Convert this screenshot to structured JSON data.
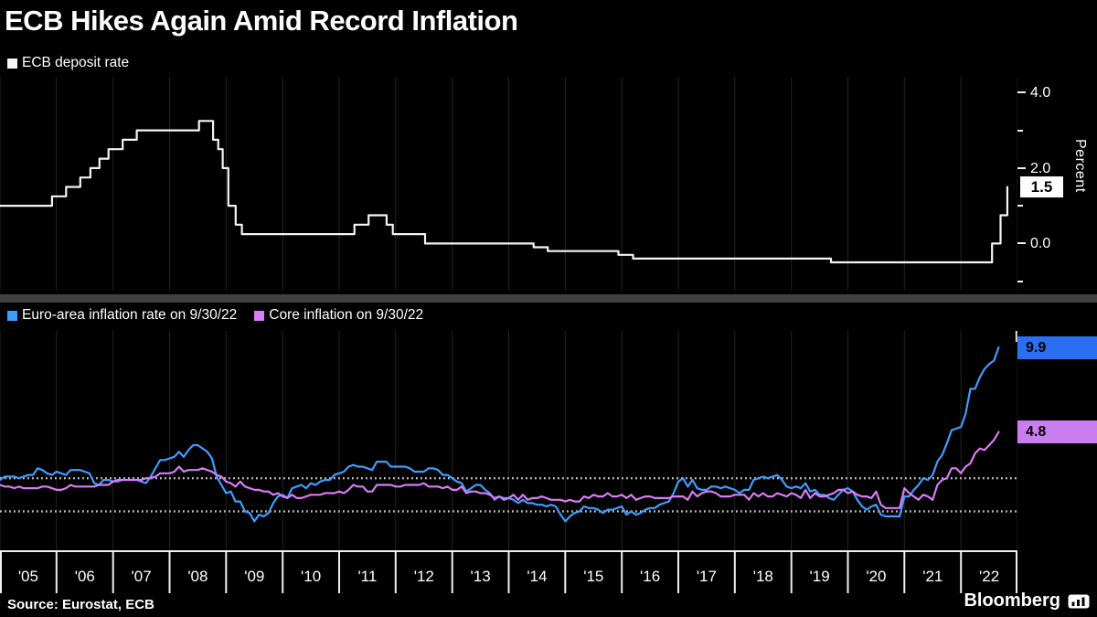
{
  "title": "ECB Hikes Again Amid Record Inflation",
  "footer": {
    "source": "Source: Eurostat, ECB",
    "brand": "Bloomberg"
  },
  "colors": {
    "background": "#000000",
    "grid": "#242424",
    "divider": "#424242",
    "dotted_line": "#c0c0c0",
    "axis": "#f0f0f0",
    "deposit_line": "#f5f5f5",
    "euro_area_line": "#3f9dff",
    "core_line": "#d97cf5",
    "deposit_badge": "#ffffff",
    "euro_area_badge": "#2b6ff2",
    "core_badge": "#c97ef0"
  },
  "chart_data": [
    {
      "type": "line",
      "title": "ECB deposit rate",
      "ylabel": "Percent",
      "x_range": [
        2005.0,
        2023.0
      ],
      "ylim": [
        -1.25,
        4.42
      ],
      "step": true,
      "yticks": [
        {
          "v": 4.0,
          "label": "4.0"
        },
        {
          "v": 2.0,
          "label": "2.0"
        },
        {
          "v": 0.0,
          "label": "0.0"
        }
      ],
      "minor_yticks": [
        3.0,
        1.0,
        -1.0
      ],
      "series": [
        {
          "id": "deposit-rate-line",
          "name": "ECB deposit rate",
          "color": "#f5f5f5",
          "badge": "1.5",
          "points": [
            [
              2005.0,
              1.0
            ],
            [
              2005.92,
              1.25
            ],
            [
              2006.17,
              1.5
            ],
            [
              2006.42,
              1.75
            ],
            [
              2006.6,
              2.0
            ],
            [
              2006.76,
              2.25
            ],
            [
              2006.92,
              2.5
            ],
            [
              2007.17,
              2.75
            ],
            [
              2007.42,
              3.0
            ],
            [
              2008.52,
              3.25
            ],
            [
              2008.77,
              2.75
            ],
            [
              2008.86,
              2.5
            ],
            [
              2008.94,
              2.0
            ],
            [
              2009.04,
              1.0
            ],
            [
              2009.17,
              0.5
            ],
            [
              2009.28,
              0.25
            ],
            [
              2011.27,
              0.5
            ],
            [
              2011.52,
              0.75
            ],
            [
              2011.84,
              0.5
            ],
            [
              2011.95,
              0.25
            ],
            [
              2012.52,
              0.0
            ],
            [
              2014.44,
              -0.1
            ],
            [
              2014.69,
              -0.2
            ],
            [
              2015.94,
              -0.3
            ],
            [
              2016.2,
              -0.4
            ],
            [
              2019.7,
              -0.5
            ],
            [
              2022.55,
              0.0
            ],
            [
              2022.7,
              0.75
            ],
            [
              2022.82,
              1.5
            ]
          ]
        }
      ]
    },
    {
      "type": "line",
      "x_range": [
        2005.0,
        2023.0
      ],
      "x_start": 2005.0,
      "x_step": 0.0833333,
      "ylim": [
        -2.35,
        10.9
      ],
      "hlines": [
        2.0,
        0.0
      ],
      "x_labels": [
        "'05",
        "'06",
        "'07",
        "'08",
        "'09",
        "'10",
        "'11",
        "'12",
        "'13",
        "'14",
        "'15",
        "'16",
        "'17",
        "'18",
        "'19",
        "'20",
        "'21",
        "'22"
      ],
      "series": [
        {
          "id": "euro-area-inflation-line",
          "name": "Euro-area inflation rate on 9/30/22",
          "color": "#3f9dff",
          "badge": "9.9",
          "values": [
            1.9,
            2.1,
            2.1,
            2.1,
            2.0,
            2.1,
            2.2,
            2.2,
            2.6,
            2.5,
            2.3,
            2.2,
            2.4,
            2.3,
            2.2,
            2.5,
            2.5,
            2.5,
            2.4,
            2.3,
            1.7,
            1.6,
            1.9,
            1.9,
            1.8,
            1.8,
            1.9,
            1.9,
            1.9,
            1.9,
            1.8,
            1.7,
            2.1,
            2.6,
            3.1,
            3.1,
            3.2,
            3.3,
            3.6,
            3.3,
            3.7,
            4.0,
            4.0,
            3.8,
            3.6,
            3.2,
            2.1,
            1.6,
            1.1,
            1.2,
            0.6,
            0.6,
            0.0,
            -0.1,
            -0.6,
            -0.2,
            -0.3,
            -0.1,
            0.5,
            0.9,
            1.0,
            0.8,
            1.4,
            1.5,
            1.6,
            1.4,
            1.7,
            1.6,
            1.8,
            1.9,
            1.9,
            2.2,
            2.3,
            2.4,
            2.7,
            2.8,
            2.7,
            2.7,
            2.6,
            2.5,
            3.0,
            3.0,
            3.0,
            2.7,
            2.7,
            2.7,
            2.7,
            2.6,
            2.4,
            2.4,
            2.4,
            2.6,
            2.6,
            2.5,
            2.2,
            2.2,
            2.0,
            1.8,
            1.7,
            1.2,
            1.4,
            1.6,
            1.6,
            1.3,
            1.1,
            0.7,
            0.9,
            0.8,
            0.8,
            0.7,
            0.5,
            0.7,
            0.5,
            0.5,
            0.4,
            0.4,
            0.3,
            0.4,
            0.3,
            -0.2,
            -0.6,
            -0.3,
            -0.1,
            0.0,
            0.3,
            0.2,
            0.2,
            0.1,
            -0.1,
            0.1,
            0.1,
            0.2,
            0.3,
            -0.2,
            0.0,
            -0.2,
            -0.1,
            0.1,
            0.2,
            0.2,
            0.4,
            0.5,
            0.6,
            1.1,
            1.8,
            2.0,
            1.5,
            1.9,
            1.4,
            1.3,
            1.3,
            1.5,
            1.5,
            1.4,
            1.5,
            1.4,
            1.3,
            1.1,
            1.3,
            1.3,
            1.9,
            2.0,
            2.1,
            2.0,
            2.1,
            2.2,
            1.9,
            1.5,
            1.4,
            1.5,
            1.4,
            1.7,
            1.2,
            1.3,
            1.0,
            1.0,
            0.8,
            0.7,
            1.0,
            1.3,
            1.4,
            1.2,
            0.7,
            0.3,
            0.1,
            0.3,
            0.4,
            -0.2,
            -0.3,
            -0.3,
            -0.3,
            -0.3,
            0.9,
            0.9,
            1.3,
            1.6,
            2.0,
            1.9,
            2.2,
            3.0,
            3.4,
            4.1,
            4.9,
            5.0,
            5.1,
            5.9,
            7.4,
            7.4,
            8.1,
            8.6,
            8.9,
            9.1,
            9.9
          ]
        },
        {
          "id": "core-inflation-line",
          "name": "Core inflation on 9/30/22",
          "color": "#d97cf5",
          "badge": "4.8",
          "values": [
            1.6,
            1.5,
            1.5,
            1.4,
            1.5,
            1.4,
            1.4,
            1.4,
            1.4,
            1.5,
            1.5,
            1.4,
            1.3,
            1.3,
            1.4,
            1.6,
            1.5,
            1.5,
            1.5,
            1.5,
            1.5,
            1.6,
            1.6,
            1.6,
            1.8,
            1.9,
            1.9,
            1.9,
            1.9,
            1.9,
            1.9,
            2.0,
            2.0,
            2.1,
            2.3,
            2.3,
            2.3,
            2.4,
            2.7,
            2.4,
            2.5,
            2.5,
            2.5,
            2.6,
            2.5,
            2.4,
            2.2,
            2.1,
            1.8,
            1.7,
            1.5,
            1.8,
            1.5,
            1.4,
            1.3,
            1.3,
            1.2,
            1.2,
            1.0,
            1.1,
            0.9,
            0.8,
            1.0,
            0.8,
            0.8,
            0.9,
            1.0,
            1.0,
            1.0,
            1.1,
            1.1,
            1.1,
            1.2,
            1.1,
            1.3,
            1.6,
            1.5,
            1.5,
            1.2,
            1.2,
            1.6,
            1.6,
            1.6,
            1.6,
            1.5,
            1.5,
            1.6,
            1.6,
            1.6,
            1.6,
            1.7,
            1.5,
            1.5,
            1.5,
            1.4,
            1.5,
            1.3,
            1.3,
            1.5,
            1.1,
            1.2,
            1.2,
            1.1,
            1.1,
            1.0,
            0.8,
            0.9,
            0.7,
            0.8,
            1.0,
            0.7,
            1.0,
            0.7,
            0.8,
            0.8,
            0.9,
            0.8,
            0.7,
            0.7,
            0.7,
            0.6,
            0.7,
            0.6,
            0.6,
            0.9,
            0.8,
            1.0,
            0.9,
            0.9,
            1.1,
            0.9,
            0.9,
            1.0,
            0.8,
            1.0,
            0.7,
            0.8,
            0.9,
            0.9,
            0.8,
            0.8,
            0.8,
            0.8,
            0.9,
            0.9,
            0.9,
            0.7,
            1.2,
            0.9,
            1.1,
            1.2,
            1.2,
            1.1,
            0.9,
            0.9,
            0.9,
            1.0,
            1.0,
            1.0,
            0.7,
            1.1,
            0.9,
            1.1,
            0.9,
            0.9,
            1.1,
            1.0,
            0.9,
            1.1,
            1.0,
            0.8,
            1.3,
            0.8,
            1.1,
            0.9,
            0.9,
            1.0,
            1.1,
            1.3,
            1.3,
            1.1,
            1.2,
            1.0,
            0.9,
            0.9,
            0.8,
            1.2,
            0.4,
            0.2,
            0.2,
            0.2,
            0.2,
            1.4,
            1.1,
            0.9,
            0.7,
            1.0,
            0.9,
            0.7,
            1.6,
            1.9,
            2.0,
            2.6,
            2.6,
            2.3,
            2.7,
            2.9,
            3.5,
            3.8,
            3.7,
            4.0,
            4.3,
            4.8
          ]
        }
      ]
    }
  ]
}
